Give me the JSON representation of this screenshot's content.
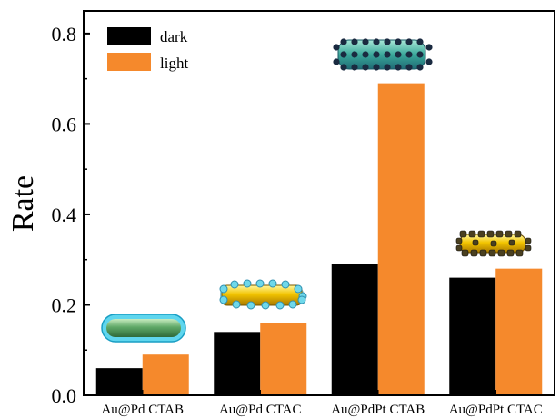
{
  "chart_data": {
    "type": "bar",
    "title": "",
    "xlabel": "",
    "ylabel": "Rate",
    "ylim": [
      0,
      0.85
    ],
    "yticks": [
      "0.0",
      "0.2",
      "0.4",
      "0.6",
      "0.8"
    ],
    "grid": false,
    "legend_position": "top-left",
    "categories": [
      "Au@Pd CTAB",
      "Au@Pd CTAC",
      "Au@PdPt CTAB",
      "Au@PdPt CTAC"
    ],
    "series": [
      {
        "name": "dark",
        "color": "#000000",
        "values": [
          0.06,
          0.14,
          0.29,
          0.26
        ]
      },
      {
        "name": "light",
        "color": "#f5892c",
        "values": [
          0.09,
          0.16,
          0.69,
          0.28
        ]
      }
    ],
    "illustrations": [
      {
        "category": "Au@Pd CTAB",
        "icon": "green-nanorod-in-cyan-shell-icon"
      },
      {
        "category": "Au@Pd CTAC",
        "icon": "gold-nanorod-with-cyan-dots-icon"
      },
      {
        "category": "Au@PdPt CTAB",
        "icon": "teal-nanorod-with-dark-dots-icon"
      },
      {
        "category": "Au@PdPt CTAC",
        "icon": "gold-nanorod-with-dark-dots-icon"
      }
    ]
  }
}
